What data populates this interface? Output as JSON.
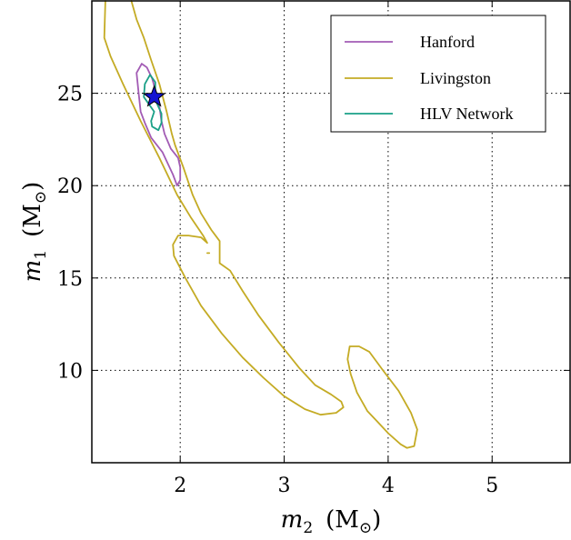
{
  "chart_data": {
    "type": "line",
    "title": "",
    "xlabel": {
      "var": "m",
      "sub": "2",
      "unit": "(M",
      "unit_sub": "⊙",
      "close": ")"
    },
    "ylabel": {
      "var": "m",
      "sub": "1",
      "unit": "(M",
      "unit_sub": "⊙",
      "close": ")"
    },
    "xlim": [
      1.15,
      5.75
    ],
    "ylim": [
      5.0,
      30.0
    ],
    "xticks": [
      2,
      3,
      4,
      5
    ],
    "yticks": [
      10,
      15,
      20,
      25
    ],
    "grid": true,
    "legend_position": "top-right",
    "series": [
      {
        "name": "Hanford",
        "color": "#a25bb4",
        "segments": [
          [
            [
              1.63,
              26.6
            ],
            [
              1.58,
              26.1
            ],
            [
              1.6,
              25.0
            ],
            [
              1.62,
              24.0
            ],
            [
              1.66,
              23.4
            ],
            [
              1.72,
              22.6
            ],
            [
              1.83,
              21.8
            ],
            [
              1.93,
              20.6
            ],
            [
              1.97,
              20.0
            ],
            [
              2.0,
              20.3
            ],
            [
              2.0,
              21.0
            ],
            [
              1.98,
              21.5
            ],
            [
              1.91,
              22.0
            ],
            [
              1.85,
              22.8
            ],
            [
              1.82,
              23.5
            ],
            [
              1.8,
              24.3
            ],
            [
              1.77,
              25.0
            ],
            [
              1.73,
              25.8
            ],
            [
              1.68,
              26.4
            ],
            [
              1.63,
              26.6
            ]
          ]
        ]
      },
      {
        "name": "Livingston",
        "color": "#c4ab24",
        "segments": [
          [
            [
              1.28,
              30.0
            ],
            [
              1.27,
              28.0
            ],
            [
              1.33,
              27.0
            ],
            [
              1.45,
              25.5
            ],
            [
              1.62,
              23.5
            ],
            [
              1.8,
              21.5
            ],
            [
              1.97,
              19.5
            ],
            [
              2.1,
              18.3
            ],
            [
              2.22,
              17.3
            ],
            [
              2.26,
              16.9
            ],
            [
              2.2,
              17.2
            ],
            [
              2.08,
              17.3
            ],
            [
              1.98,
              17.3
            ],
            [
              1.93,
              16.8
            ],
            [
              1.94,
              16.2
            ],
            [
              2.05,
              15.0
            ],
            [
              2.2,
              13.5
            ],
            [
              2.4,
              12.0
            ],
            [
              2.6,
              10.7
            ],
            [
              2.8,
              9.6
            ],
            [
              3.0,
              8.6
            ],
            [
              3.2,
              7.9
            ],
            [
              3.35,
              7.6
            ],
            [
              3.5,
              7.7
            ],
            [
              3.57,
              8.0
            ],
            [
              3.55,
              8.3
            ],
            [
              3.45,
              8.7
            ],
            [
              3.3,
              9.2
            ],
            [
              3.15,
              10.1
            ],
            [
              2.95,
              11.5
            ],
            [
              2.75,
              13.0
            ],
            [
              2.6,
              14.3
            ],
            [
              2.48,
              15.4
            ],
            [
              2.38,
              15.8
            ],
            [
              2.38,
              17.0
            ],
            [
              2.3,
              17.6
            ],
            [
              2.2,
              18.5
            ],
            [
              2.12,
              19.5
            ],
            [
              2.03,
              21.0
            ],
            [
              1.95,
              22.2
            ],
            [
              1.92,
              22.8
            ],
            [
              1.87,
              24.0
            ],
            [
              1.8,
              25.5
            ],
            [
              1.72,
              26.8
            ],
            [
              1.65,
              28.0
            ],
            [
              1.58,
              29.0
            ],
            [
              1.53,
              30.0
            ]
          ],
          [
            [
              3.63,
              11.3
            ],
            [
              3.72,
              11.3
            ],
            [
              3.82,
              11.0
            ],
            [
              3.95,
              10.0
            ],
            [
              4.1,
              8.9
            ],
            [
              4.22,
              7.7
            ],
            [
              4.28,
              6.8
            ],
            [
              4.25,
              5.9
            ],
            [
              4.18,
              5.8
            ],
            [
              4.12,
              6.0
            ],
            [
              4.0,
              6.6
            ],
            [
              3.9,
              7.2
            ],
            [
              3.8,
              7.8
            ],
            [
              3.7,
              8.8
            ],
            [
              3.64,
              9.8
            ],
            [
              3.61,
              10.6
            ],
            [
              3.63,
              11.3
            ]
          ],
          [
            [
              2.26,
              16.35
            ],
            [
              2.28,
              16.35
            ]
          ]
        ]
      },
      {
        "name": "HLV Network",
        "color": "#1aa087",
        "segments": [
          [
            [
              1.71,
              26.0
            ],
            [
              1.66,
              25.5
            ],
            [
              1.65,
              24.8
            ],
            [
              1.7,
              24.4
            ],
            [
              1.75,
              24.0
            ],
            [
              1.72,
              23.5
            ],
            [
              1.73,
              23.2
            ],
            [
              1.79,
              23.0
            ],
            [
              1.82,
              23.4
            ],
            [
              1.82,
              23.9
            ],
            [
              1.78,
              24.4
            ],
            [
              1.76,
              25.0
            ],
            [
              1.76,
              25.6
            ],
            [
              1.71,
              26.0
            ]
          ]
        ]
      }
    ],
    "marker": {
      "x": 1.75,
      "y": 24.8,
      "shape": "star",
      "fill": "#1414d2",
      "stroke": "#000000"
    }
  }
}
